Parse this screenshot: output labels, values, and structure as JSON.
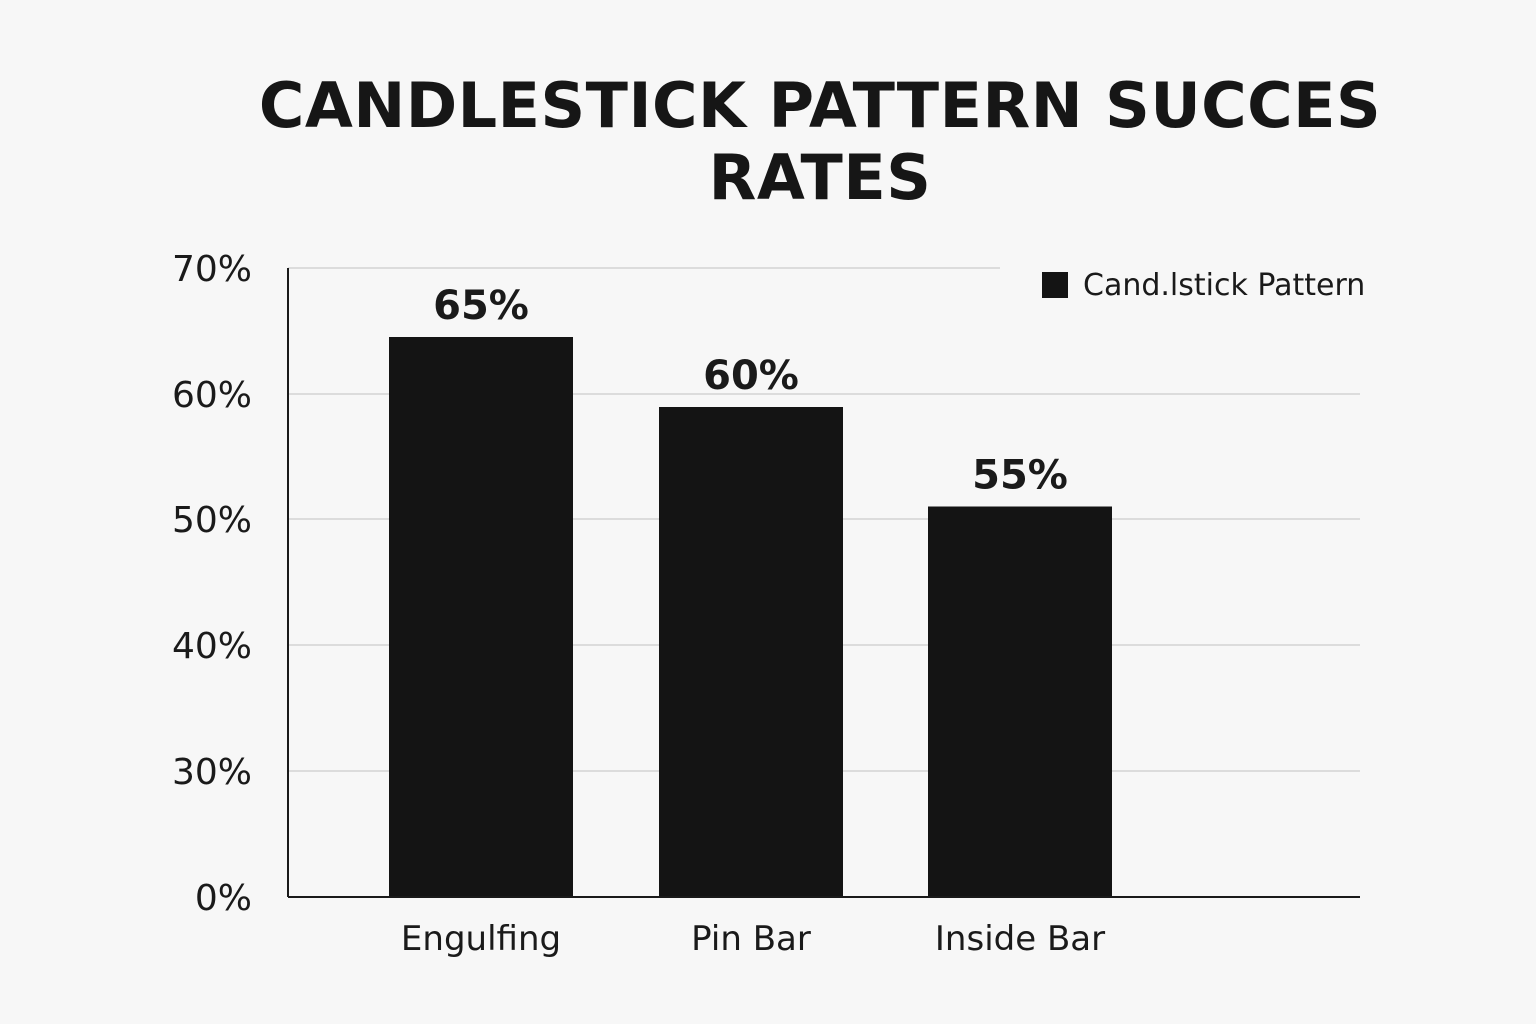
{
  "chart_data": {
    "type": "bar",
    "title": "CANDLESTICK PATTERN SUCCES RATES",
    "xlabel": "",
    "ylabel": "",
    "categories": [
      "Engulfing",
      "Pin Bar",
      "Inside Bar"
    ],
    "series": [
      {
        "name": "Cand.lstick Pattern",
        "values": [
          65,
          60,
          55
        ],
        "data_labels": [
          "65%",
          "60%",
          "55%"
        ],
        "color": "#141414"
      }
    ],
    "y_ticks": [
      {
        "value": 0,
        "label": "0%"
      },
      {
        "value": 30,
        "label": "30%"
      },
      {
        "value": 40,
        "label": "40%"
      },
      {
        "value": 50,
        "label": "50%"
      },
      {
        "value": 60,
        "label": "60%"
      },
      {
        "value": 70,
        "label": "70%"
      }
    ],
    "ylim": [
      0,
      70
    ],
    "grid": true,
    "legend_position": "top-right"
  },
  "colors": {
    "background": "#f7f7f7",
    "bar": "#141414",
    "grid": "#dcdcdc",
    "axis": "#1a1a1a"
  }
}
